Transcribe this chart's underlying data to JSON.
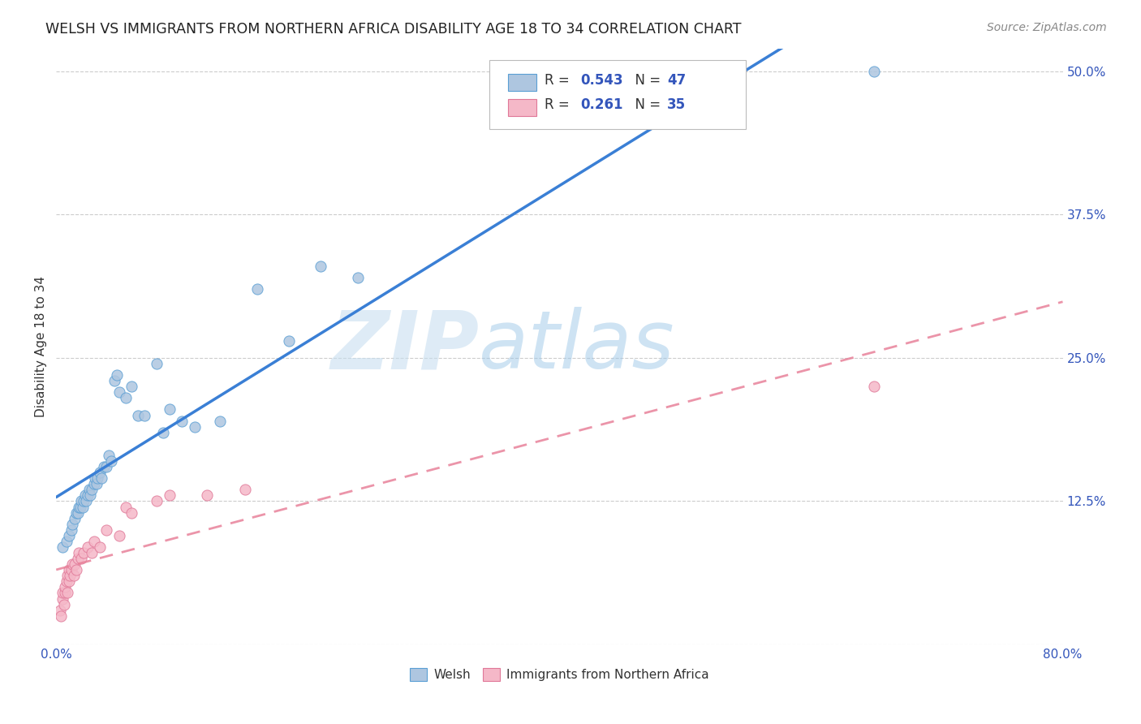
{
  "title": "WELSH VS IMMIGRANTS FROM NORTHERN AFRICA DISABILITY AGE 18 TO 34 CORRELATION CHART",
  "source": "Source: ZipAtlas.com",
  "ylabel": "Disability Age 18 to 34",
  "xlim": [
    0.0,
    0.8
  ],
  "ylim": [
    -0.02,
    0.54
  ],
  "plot_ylim": [
    0.0,
    0.52
  ],
  "xticks": [
    0.0,
    0.1,
    0.2,
    0.3,
    0.4,
    0.5,
    0.6,
    0.7,
    0.8
  ],
  "xticklabels": [
    "0.0%",
    "",
    "",
    "",
    "",
    "",
    "",
    "",
    "80.0%"
  ],
  "yticks": [
    0.0,
    0.125,
    0.25,
    0.375,
    0.5
  ],
  "yticklabels": [
    "",
    "12.5%",
    "25.0%",
    "37.5%",
    "50.0%"
  ],
  "welsh_color": "#aec6e0",
  "welsh_edge_color": "#5a9fd4",
  "immigrants_color": "#f5b8c8",
  "immigrants_edge_color": "#e07898",
  "welsh_line_color": "#3a7fd5",
  "immigrants_line_color": "#e8829a",
  "watermark_zip": "ZIP",
  "watermark_atlas": "atlas",
  "legend_R_welsh": "0.543",
  "legend_N_welsh": "47",
  "legend_R_immigrants": "0.261",
  "legend_N_immigrants": "35",
  "welsh_scatter_x": [
    0.005,
    0.008,
    0.01,
    0.012,
    0.013,
    0.015,
    0.016,
    0.017,
    0.018,
    0.019,
    0.02,
    0.021,
    0.022,
    0.023,
    0.024,
    0.025,
    0.026,
    0.027,
    0.028,
    0.03,
    0.031,
    0.032,
    0.033,
    0.035,
    0.036,
    0.038,
    0.04,
    0.042,
    0.044,
    0.046,
    0.048,
    0.05,
    0.055,
    0.06,
    0.065,
    0.07,
    0.08,
    0.085,
    0.09,
    0.1,
    0.11,
    0.13,
    0.16,
    0.185,
    0.21,
    0.24,
    0.65
  ],
  "welsh_scatter_y": [
    0.085,
    0.09,
    0.095,
    0.1,
    0.105,
    0.11,
    0.115,
    0.115,
    0.12,
    0.12,
    0.125,
    0.12,
    0.125,
    0.13,
    0.125,
    0.13,
    0.135,
    0.13,
    0.135,
    0.14,
    0.145,
    0.14,
    0.145,
    0.15,
    0.145,
    0.155,
    0.155,
    0.165,
    0.16,
    0.23,
    0.235,
    0.22,
    0.215,
    0.225,
    0.2,
    0.2,
    0.245,
    0.185,
    0.205,
    0.195,
    0.19,
    0.195,
    0.31,
    0.265,
    0.33,
    0.32,
    0.5
  ],
  "immigrants_scatter_x": [
    0.003,
    0.004,
    0.005,
    0.005,
    0.006,
    0.007,
    0.007,
    0.008,
    0.009,
    0.009,
    0.01,
    0.01,
    0.011,
    0.012,
    0.013,
    0.014,
    0.015,
    0.016,
    0.017,
    0.018,
    0.02,
    0.022,
    0.025,
    0.028,
    0.03,
    0.035,
    0.04,
    0.05,
    0.055,
    0.06,
    0.08,
    0.09,
    0.12,
    0.15,
    0.65
  ],
  "immigrants_scatter_y": [
    0.03,
    0.025,
    0.04,
    0.045,
    0.035,
    0.045,
    0.05,
    0.055,
    0.045,
    0.06,
    0.055,
    0.065,
    0.06,
    0.065,
    0.07,
    0.06,
    0.07,
    0.065,
    0.075,
    0.08,
    0.075,
    0.08,
    0.085,
    0.08,
    0.09,
    0.085,
    0.1,
    0.095,
    0.12,
    0.115,
    0.125,
    0.13,
    0.13,
    0.135,
    0.225
  ],
  "background_color": "#ffffff",
  "grid_color": "#cccccc"
}
